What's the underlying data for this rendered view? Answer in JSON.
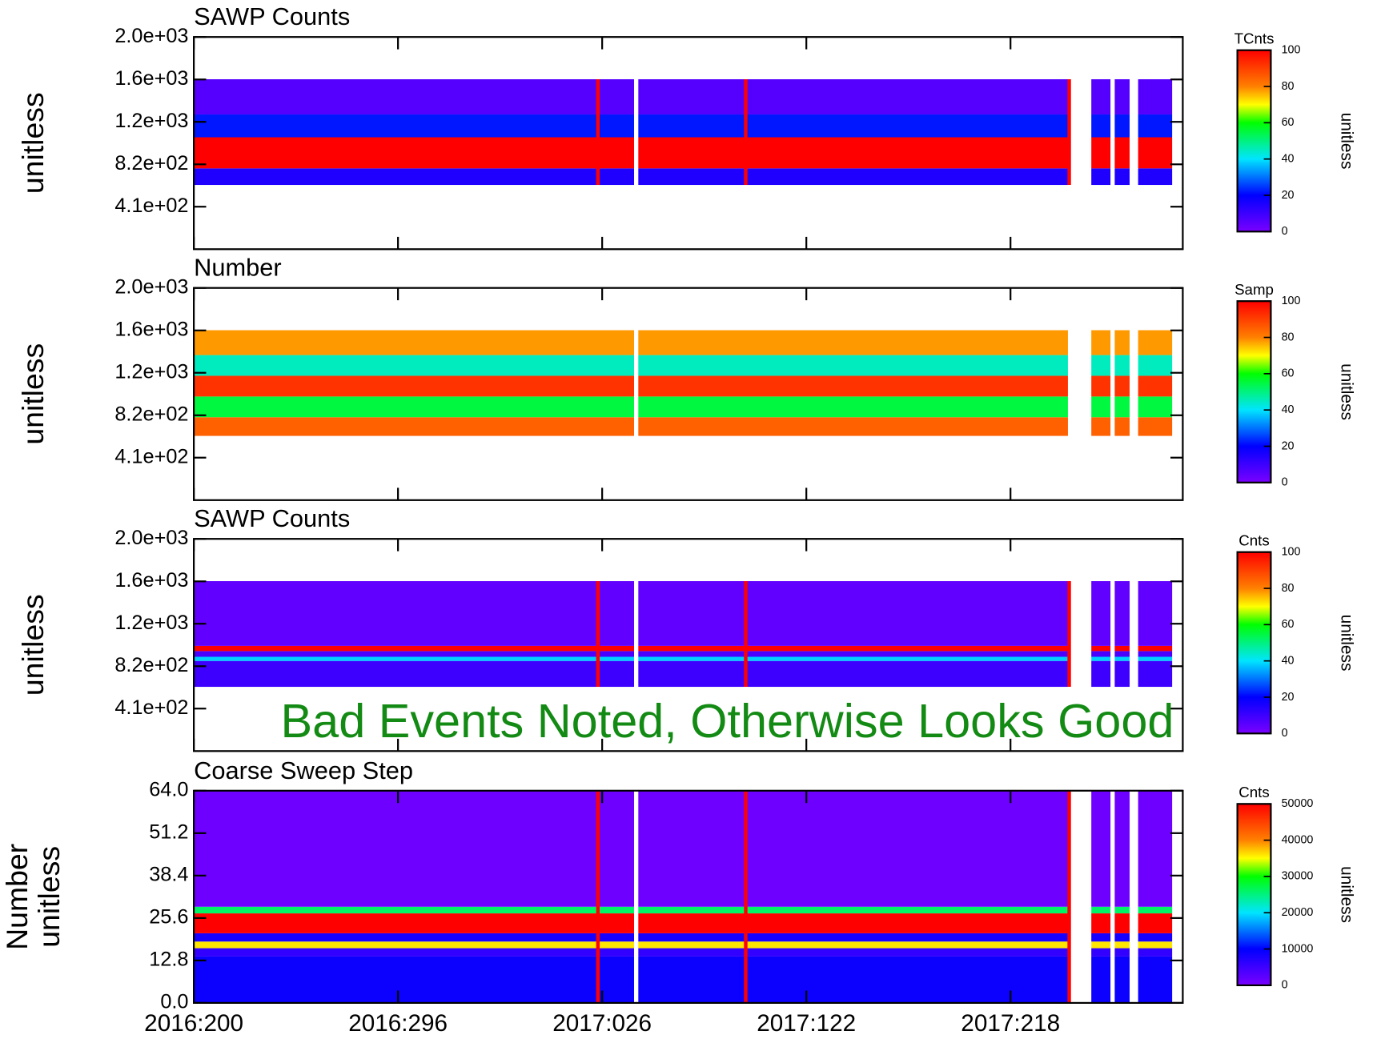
{
  "chart_data": {
    "type": "heatmap",
    "annotation": "Bad Events Noted, Otherwise Looks Good",
    "annotation_color": "#138a13",
    "xlim": [
      0,
      465
    ],
    "xticks": [
      {
        "value": 0,
        "label": "2016:200"
      },
      {
        "value": 96,
        "label": "2016:296"
      },
      {
        "value": 192,
        "label": "2017:026"
      },
      {
        "value": 288,
        "label": "2017:122"
      },
      {
        "value": 384,
        "label": "2017:218"
      }
    ],
    "colormap": [
      "#7a00ff",
      "#0000ff",
      "#00e5ff",
      "#00ff00",
      "#ffff00",
      "#ff8000",
      "#ff0000"
    ],
    "spike_color": "#ff0000",
    "segments": [
      [
        0,
        207
      ],
      [
        209,
        411
      ],
      [
        422,
        431
      ],
      [
        433,
        440
      ],
      [
        444,
        460
      ]
    ],
    "panels": [
      {
        "title": "SAWP Counts",
        "ylabel": [
          "unitless"
        ],
        "ylim": [
          0,
          2048
        ],
        "yticks": [
          {
            "value": 2048,
            "label": "2.0e+03"
          },
          {
            "value": 1638,
            "label": "1.6e+03"
          },
          {
            "value": 1229,
            "label": "1.2e+03"
          },
          {
            "value": 819,
            "label": "8.2e+02"
          },
          {
            "value": 410,
            "label": "4.1e+02"
          }
        ],
        "colorbar": {
          "title": "TCnts",
          "label": "unitless",
          "clim": [
            0,
            100
          ],
          "ticks": [
            0,
            20,
            40,
            60,
            80,
            100
          ]
        },
        "bands": [
          {
            "y": [
              620,
              780
            ],
            "value": 15
          },
          {
            "y": [
              780,
              1080
            ],
            "value": 100
          },
          {
            "y": [
              1080,
              1300
            ],
            "value": 22
          },
          {
            "y": [
              1300,
              1640
            ],
            "value": 6
          }
        ],
        "spikes": [
          190,
          259.5,
          411.6
        ]
      },
      {
        "title": "Number",
        "ylabel": [
          "unitless"
        ],
        "ylim": [
          0,
          2048
        ],
        "yticks": [
          {
            "value": 2048,
            "label": "2.0e+03"
          },
          {
            "value": 1638,
            "label": "1.6e+03"
          },
          {
            "value": 1229,
            "label": "1.2e+03"
          },
          {
            "value": 819,
            "label": "8.2e+02"
          },
          {
            "value": 410,
            "label": "4.1e+02"
          }
        ],
        "colorbar": {
          "title": "Samp",
          "label": "unitless",
          "clim": [
            0,
            100
          ],
          "ticks": [
            0,
            20,
            40,
            60,
            80,
            100
          ]
        },
        "bands": [
          {
            "y": [
              620,
              800
            ],
            "value": 85
          },
          {
            "y": [
              800,
              1000
            ],
            "value": 55
          },
          {
            "y": [
              1000,
              1200
            ],
            "value": 92
          },
          {
            "y": [
              1200,
              1400
            ],
            "value": 45
          },
          {
            "y": [
              1400,
              1640
            ],
            "value": 78
          }
        ],
        "spikes": []
      },
      {
        "title": "SAWP Counts",
        "ylabel": [
          "unitless"
        ],
        "ylim": [
          0,
          2048
        ],
        "yticks": [
          {
            "value": 2048,
            "label": "2.0e+03"
          },
          {
            "value": 1638,
            "label": "1.6e+03"
          },
          {
            "value": 1229,
            "label": "1.2e+03"
          },
          {
            "value": 819,
            "label": "8.2e+02"
          },
          {
            "value": 410,
            "label": "4.1e+02"
          }
        ],
        "colorbar": {
          "title": "Cnts",
          "label": "unitless",
          "clim": [
            0,
            100
          ],
          "ticks": [
            0,
            20,
            40,
            60,
            80,
            100
          ]
        },
        "bands": [
          {
            "y": [
              620,
              870
            ],
            "value": 10
          },
          {
            "y": [
              870,
              910
            ],
            "value": 38
          },
          {
            "y": [
              910,
              965
            ],
            "value": 8
          },
          {
            "y": [
              965,
              1015
            ],
            "value": 100
          },
          {
            "y": [
              1015,
              1640
            ],
            "value": 4
          }
        ],
        "spikes": [
          190,
          259.5,
          411.6
        ]
      },
      {
        "title": "Coarse Sweep Step",
        "ylabel": [
          "Number",
          "unitless"
        ],
        "ylim": [
          0,
          64
        ],
        "yticks": [
          {
            "value": 64,
            "label": "64.0"
          },
          51.2,
          38.4,
          25.6,
          12.8,
          {
            "value": 0,
            "label": "0.0"
          }
        ],
        "colorbar": {
          "title": "Cnts",
          "label": "unitless",
          "clim": [
            0,
            50000
          ],
          "ticks": [
            0,
            10000,
            20000,
            30000,
            40000,
            50000
          ]
        },
        "bands": [
          {
            "y": [
              0,
              14
            ],
            "value": 9000
          },
          {
            "y": [
              14,
              16.5
            ],
            "value": 6000
          },
          {
            "y": [
              16.5,
              18.5
            ],
            "value": 36000
          },
          {
            "y": [
              18.5,
              21
            ],
            "value": 8000
          },
          {
            "y": [
              21,
              27
            ],
            "value": 50000
          },
          {
            "y": [
              27,
              29
            ],
            "value": 26000
          },
          {
            "y": [
              29,
              64
            ],
            "value": 1000
          }
        ],
        "spikes": [
          190,
          259.5,
          411.6
        ]
      }
    ]
  }
}
